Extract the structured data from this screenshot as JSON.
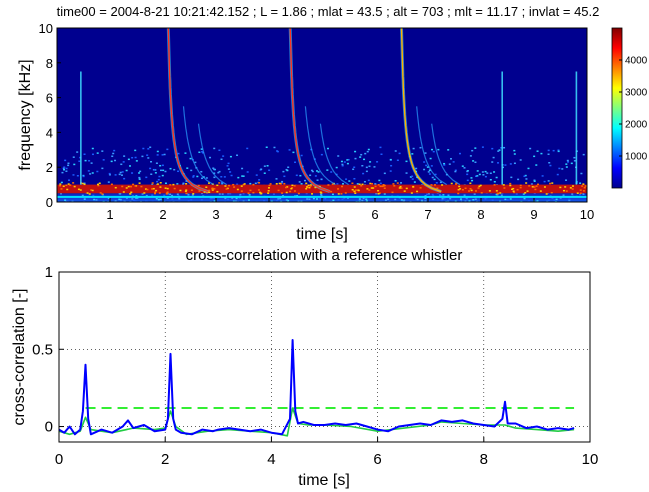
{
  "chart_data": [
    {
      "type": "heatmap",
      "title": "time00 = 2004-8-21 10:21:42.152 ; L = 1.86 ; mlat = 43.5 ; alt = 703 ; mlt = 11.17 ; invlat = 45.2",
      "xlabel": "time [s]",
      "ylabel": "frequency [kHz]",
      "xlim": [
        0,
        10
      ],
      "ylim": [
        0,
        10
      ],
      "xticks": [
        "1",
        "2",
        "3",
        "4",
        "5",
        "6",
        "7",
        "8",
        "9",
        "10"
      ],
      "yticks": [
        "0",
        "2",
        "4",
        "6",
        "8",
        "10"
      ],
      "colorbar": {
        "range": [
          0,
          5000
        ],
        "ticks": [
          "1000",
          "2000",
          "3000",
          "4000"
        ],
        "colormap": "jet"
      },
      "features": [
        {
          "kind": "spike",
          "time": 0.45
        },
        {
          "kind": "whistler",
          "time": 2.1
        },
        {
          "kind": "whistler",
          "time": 4.4
        },
        {
          "kind": "whistler",
          "time": 6.5
        },
        {
          "kind": "spike",
          "time": 8.4
        },
        {
          "kind": "spike",
          "time": 9.8
        }
      ],
      "band": {
        "freq_khz": [
          0.5,
          1.0
        ],
        "description_levels": "high"
      }
    },
    {
      "type": "line",
      "title": "cross-correlation with a reference whistler",
      "xlabel": "time [s]",
      "ylabel": "cross-correlation [-]",
      "xlim": [
        0,
        10
      ],
      "ylim": [
        -0.1,
        1
      ],
      "xticks": [
        "0",
        "2",
        "4",
        "6",
        "8",
        "10"
      ],
      "yticks": [
        "0",
        "0.5",
        "1"
      ],
      "grid": true,
      "threshold": 0.12,
      "series": [
        {
          "color": "#0000ff",
          "x": [
            0,
            0.1,
            0.2,
            0.3,
            0.4,
            0.45,
            0.5,
            0.55,
            0.6,
            0.8,
            1.0,
            1.2,
            1.3,
            1.4,
            1.6,
            1.8,
            2.0,
            2.05,
            2.1,
            2.15,
            2.2,
            2.3,
            2.5,
            2.7,
            2.9,
            3.0,
            3.2,
            3.4,
            3.6,
            3.8,
            4.0,
            4.2,
            4.35,
            4.4,
            4.45,
            4.5,
            4.6,
            4.8,
            5.0,
            5.2,
            5.4,
            5.6,
            5.8,
            6.0,
            6.2,
            6.4,
            6.6,
            6.8,
            7.0,
            7.2,
            7.4,
            7.6,
            7.8,
            8.0,
            8.2,
            8.35,
            8.4,
            8.45,
            8.6,
            8.8,
            9.0,
            9.2,
            9.4,
            9.6,
            9.7
          ],
          "y": [
            -0.02,
            -0.04,
            0.0,
            -0.05,
            -0.02,
            0.1,
            0.4,
            0.05,
            -0.05,
            -0.02,
            -0.04,
            0.0,
            0.04,
            -0.01,
            0.01,
            -0.03,
            -0.02,
            0.05,
            0.47,
            0.05,
            -0.02,
            -0.04,
            -0.05,
            -0.02,
            -0.03,
            -0.02,
            -0.01,
            -0.02,
            -0.03,
            -0.02,
            -0.04,
            -0.05,
            0.05,
            0.56,
            0.1,
            0.02,
            0.03,
            0.01,
            0.01,
            0.02,
            0.01,
            0.02,
            0.0,
            -0.02,
            -0.03,
            0.0,
            0.01,
            0.02,
            0.01,
            0.04,
            0.03,
            0.04,
            0.02,
            0.01,
            0.0,
            0.05,
            0.16,
            0.02,
            0.02,
            -0.01,
            0.0,
            -0.02,
            -0.01,
            -0.02,
            -0.01
          ]
        },
        {
          "color": "#22cc44",
          "x": [
            0,
            0.2,
            0.4,
            0.5,
            0.6,
            0.8,
            1.0,
            1.4,
            1.8,
            2.0,
            2.1,
            2.2,
            2.4,
            2.8,
            3.2,
            3.6,
            4.0,
            4.3,
            4.4,
            4.5,
            4.7,
            5.0,
            5.5,
            6.0,
            6.5,
            7.0,
            7.2,
            7.6,
            8.0,
            8.4,
            8.6,
            9.0,
            9.4,
            9.7
          ],
          "y": [
            -0.03,
            -0.05,
            -0.03,
            0.06,
            -0.02,
            -0.03,
            -0.04,
            -0.01,
            -0.02,
            -0.01,
            0.1,
            0.0,
            -0.05,
            -0.03,
            -0.02,
            -0.03,
            -0.04,
            -0.06,
            0.12,
            0.02,
            0.01,
            0.01,
            0.0,
            -0.03,
            -0.01,
            0.01,
            0.03,
            0.02,
            0.01,
            0.01,
            -0.01,
            -0.02,
            -0.03,
            -0.02
          ]
        }
      ]
    }
  ]
}
